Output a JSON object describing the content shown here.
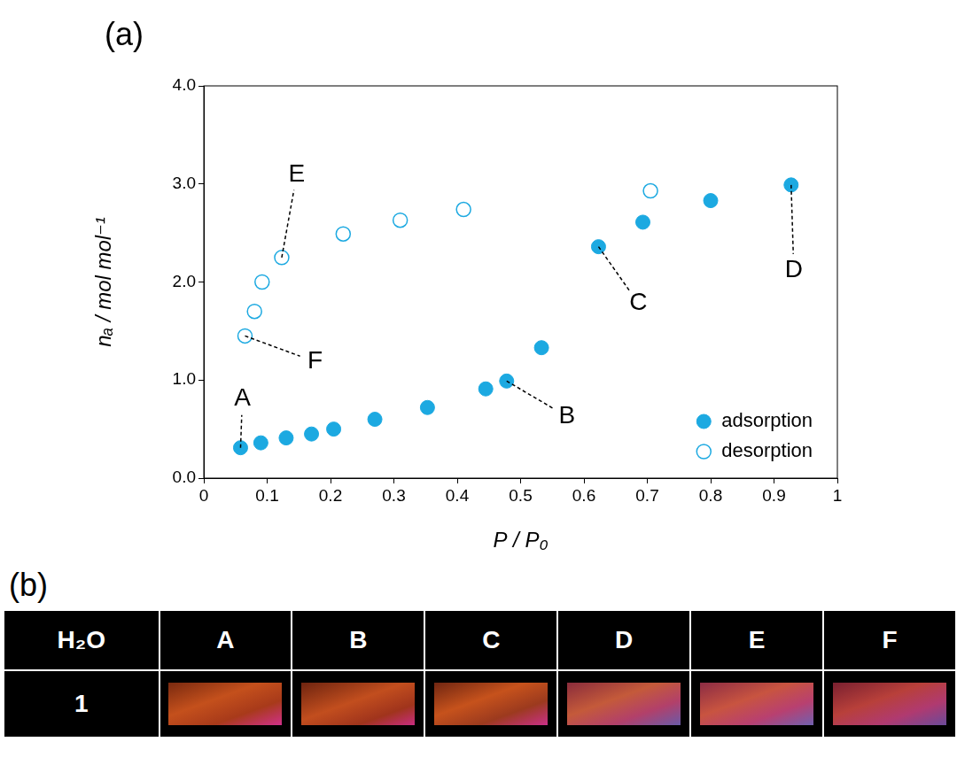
{
  "chart_data": {
    "type": "scatter",
    "panel": "(a)",
    "x_label": "P / P₀",
    "y_label": "nₐ / mol mol⁻¹",
    "xlim": [
      0,
      1
    ],
    "xticks": [
      0,
      0.1,
      0.2,
      0.3,
      0.4,
      0.5,
      0.6,
      0.7,
      0.8,
      0.9,
      1
    ],
    "ylim": [
      0,
      4
    ],
    "yticks": [
      {
        "value": 0,
        "label": "0.0"
      },
      {
        "value": 1,
        "label": "1.0"
      },
      {
        "value": 2,
        "label": "2.0"
      },
      {
        "value": 3,
        "label": "3.0"
      },
      {
        "value": 4,
        "label": "4.0"
      }
    ],
    "grid": false,
    "legend": "lower right",
    "series": [
      {
        "name": "adsorption",
        "color": "#1CA9E1",
        "marker": "circle",
        "x": [
          0.058,
          0.09,
          0.13,
          0.17,
          0.205,
          0.27,
          0.353,
          0.445,
          0.478,
          0.533,
          0.623,
          0.693,
          0.8,
          0.927
        ],
        "values": [
          0.31,
          0.36,
          0.41,
          0.45,
          0.5,
          0.6,
          0.72,
          0.91,
          0.99,
          1.33,
          2.36,
          2.61,
          2.83,
          2.99
        ]
      },
      {
        "name": "desorption",
        "color": "#1CA9E1",
        "marker": "open_circle",
        "x": [
          0.705,
          0.41,
          0.31,
          0.22,
          0.123,
          0.092,
          0.08,
          0.065
        ],
        "values": [
          2.93,
          2.74,
          2.63,
          2.49,
          2.25,
          2.0,
          1.7,
          1.45
        ]
      }
    ],
    "annotations": [
      {
        "text": "A",
        "x": 0.058,
        "y": 0.31
      },
      {
        "text": "B",
        "x": 0.478,
        "y": 0.99
      },
      {
        "text": "C",
        "x": 0.623,
        "y": 2.36
      },
      {
        "text": "D",
        "x": 0.927,
        "y": 2.99
      },
      {
        "text": "E",
        "x": 0.123,
        "y": 2.25
      },
      {
        "text": "F",
        "x": 0.065,
        "y": 1.45
      }
    ]
  },
  "photo_table": {
    "panel": "(b)",
    "header": [
      "H₂O",
      "A",
      "B",
      "C",
      "D",
      "E",
      "F"
    ],
    "rows": [
      [
        "1"
      ]
    ]
  }
}
